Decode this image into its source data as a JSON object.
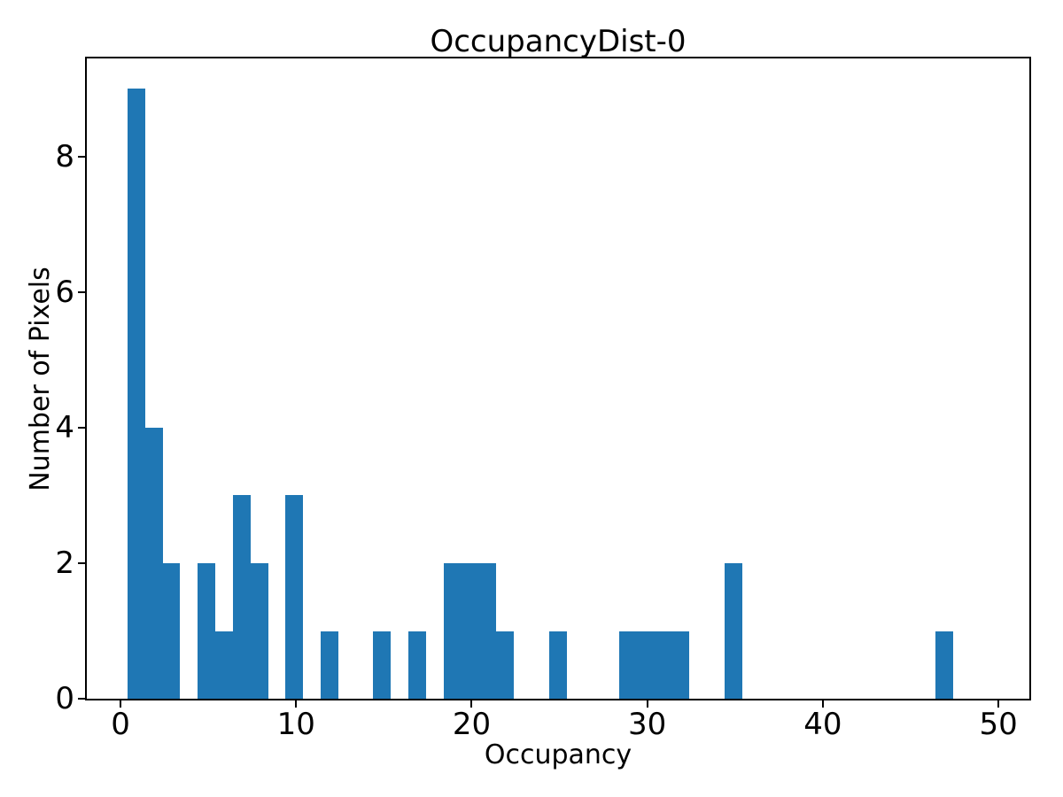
{
  "chart_data": {
    "type": "histogram",
    "title": "OccupancyDist-0",
    "xlabel": "Occupancy",
    "ylabel": "Number of Pixels",
    "bar_color": "#1f77b4",
    "text_color": "#000000",
    "background_color": "#ffffff",
    "bin_start": 0.4,
    "bin_width": 1.0,
    "counts": [
      9,
      4,
      2,
      0,
      2,
      1,
      3,
      2,
      0,
      3,
      0,
      1,
      0,
      0,
      1,
      0,
      1,
      0,
      2,
      2,
      2,
      1,
      0,
      0,
      1,
      0,
      0,
      0,
      1,
      1,
      1,
      1,
      0,
      0,
      2,
      0,
      0,
      0,
      0,
      0,
      0,
      0,
      0,
      0,
      0,
      0,
      1
    ],
    "xticks": [
      0,
      10,
      20,
      30,
      40,
      50
    ],
    "yticks": [
      0,
      2,
      4,
      6,
      8
    ],
    "xlim": [
      -1.92,
      51.76
    ],
    "ylim": [
      0,
      9.45
    ],
    "grid": false
  }
}
